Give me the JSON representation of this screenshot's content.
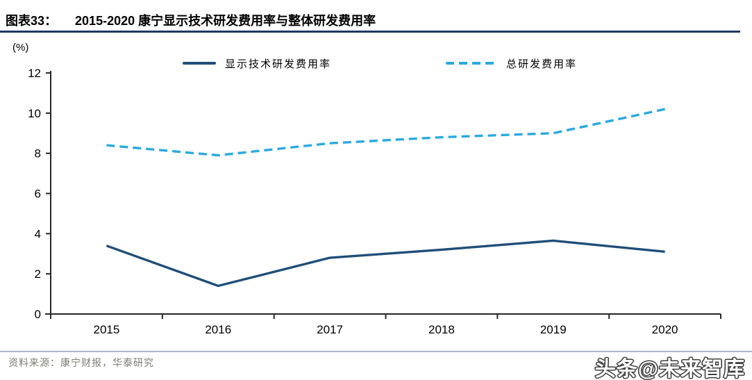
{
  "header": {
    "label": "图表33：",
    "title": "2015-2020 康宁显示技术研发费用率与整体研发费用率"
  },
  "chart_data": {
    "type": "line",
    "title": "2015-2020 康宁显示技术研发费用率与整体研发费用率",
    "unit_label": "(%)",
    "categories": [
      "2015",
      "2016",
      "2017",
      "2018",
      "2019",
      "2020"
    ],
    "series": [
      {
        "name": "显示技术研发费用率",
        "values": [
          3.4,
          1.4,
          2.8,
          3.2,
          3.65,
          3.1
        ],
        "color": "#1F4E79",
        "style": "solid"
      },
      {
        "name": "总研发费用率",
        "values": [
          8.4,
          7.9,
          8.5,
          8.8,
          9.0,
          10.2
        ],
        "color": "#29A9E0",
        "style": "dashed"
      }
    ],
    "ylim": [
      0,
      12
    ],
    "yticks": [
      0,
      2,
      4,
      6,
      8,
      10,
      12
    ],
    "legend_position": "top",
    "grid": false,
    "axis_color": "#262626"
  },
  "footer": {
    "source": "资料来源：康宁财报，华泰研究",
    "watermark": "头条@未来智库"
  },
  "colors": {
    "title_rule": "#1F3864",
    "footer_rule": "#A9B7CC"
  }
}
